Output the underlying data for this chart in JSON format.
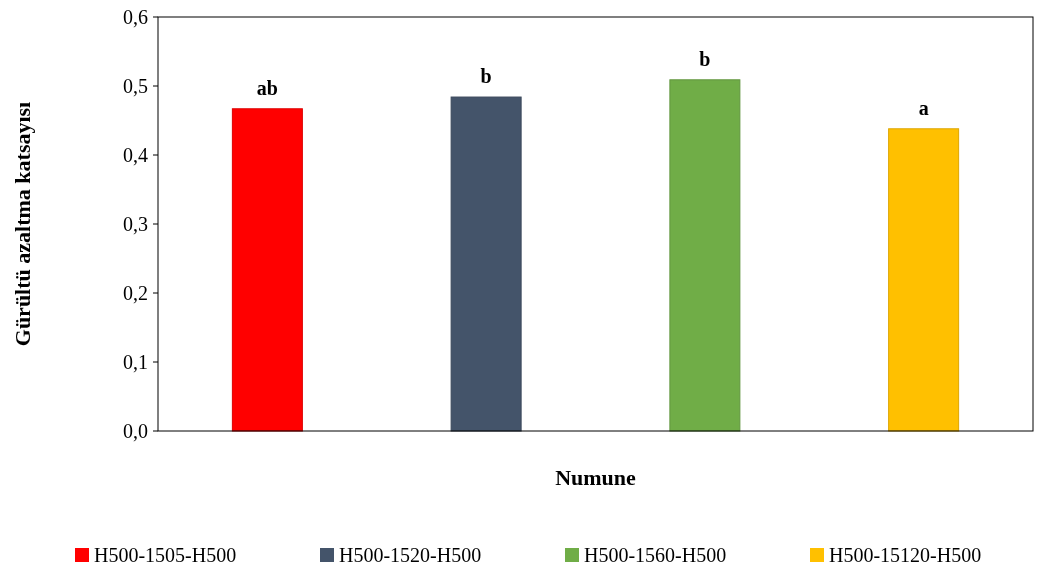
{
  "chart_data": {
    "type": "bar",
    "xlabel": "Numune",
    "ylabel": "Gürültü azaltma katsayısı",
    "categories": [
      null,
      null,
      null,
      null
    ],
    "stacked": true,
    "series": [
      {
        "name": "H500-1505-H500",
        "color": "#ff0000",
        "values": [
          0.467,
          null,
          null,
          null
        ],
        "value_labels": [
          "ab",
          null,
          null,
          null
        ]
      },
      {
        "name": "H500-1520-H500",
        "color": "#44546a",
        "values": [
          null,
          0.484,
          null,
          null
        ],
        "value_labels": [
          null,
          "b",
          null,
          null
        ]
      },
      {
        "name": "H500-1560-H500",
        "color": "#70ad47",
        "values": [
          null,
          null,
          0.509,
          null
        ],
        "value_labels": [
          null,
          null,
          "b",
          null
        ]
      },
      {
        "name": "H500-15120-H500",
        "color": "#ffc000",
        "values": [
          null,
          null,
          null,
          0.438
        ],
        "value_labels": [
          null,
          null,
          null,
          "a"
        ]
      }
    ],
    "ylim": [
      0,
      0.6
    ],
    "yticks": [
      {
        "value": 0,
        "label": "0,0"
      },
      {
        "value": 0.1,
        "label": "0,1"
      },
      {
        "value": 0.2,
        "label": "0,2"
      },
      {
        "value": 0.3,
        "label": "0,3"
      },
      {
        "value": 0.4,
        "label": "0,4"
      },
      {
        "value": 0.5,
        "label": "0,5"
      },
      {
        "value": 0.6,
        "label": "0,6"
      }
    ],
    "grid": false,
    "legend": "bottom"
  }
}
